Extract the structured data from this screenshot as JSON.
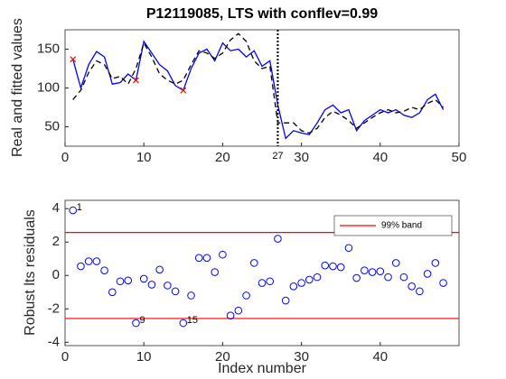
{
  "chart_data": [
    {
      "type": "line",
      "title": "P12119085, LTS with conflev=0.99",
      "y_label": "Real and fitted values",
      "x": [
        1,
        2,
        3,
        4,
        5,
        6,
        7,
        8,
        9,
        10,
        11,
        12,
        13,
        14,
        15,
        16,
        17,
        18,
        19,
        20,
        21,
        22,
        23,
        24,
        25,
        26,
        27,
        28,
        29,
        30,
        31,
        32,
        33,
        34,
        35,
        36,
        37,
        38,
        39,
        40,
        41,
        42,
        43,
        44,
        45,
        46,
        47,
        48
      ],
      "series": [
        {
          "color": "#0000ff",
          "style": "solid",
          "values": [
            137,
            100,
            130,
            147,
            140,
            105,
            107,
            118,
            110,
            160,
            145,
            130,
            122,
            103,
            97,
            125,
            145,
            150,
            135,
            158,
            148,
            150,
            140,
            148,
            128,
            135,
            78,
            35,
            45,
            42,
            40,
            55,
            72,
            78,
            68,
            72,
            45,
            58,
            65,
            72,
            68,
            72,
            65,
            62,
            68,
            85,
            92,
            72
          ]
        },
        {
          "color": "#000000",
          "style": "dashed",
          "values": [
            85,
            97,
            120,
            135,
            130,
            112,
            115,
            105,
            125,
            158,
            140,
            118,
            110,
            105,
            110,
            130,
            148,
            145,
            138,
            145,
            162,
            170,
            160,
            135,
            125,
            128,
            55,
            55,
            55,
            45,
            42,
            48,
            62,
            70,
            65,
            58,
            48,
            55,
            62,
            68,
            72,
            68,
            70,
            75,
            72,
            80,
            85,
            75
          ]
        }
      ],
      "outliers": {
        "color": "#ff0000",
        "x": [
          1,
          9,
          15
        ],
        "values": [
          137,
          110,
          97
        ]
      },
      "vline": 27,
      "xlim": [
        0,
        50
      ],
      "xticks": [
        0,
        10,
        20,
        30,
        40,
        50
      ],
      "ylim": [
        25,
        175
      ],
      "yticks": [
        50,
        100,
        150
      ]
    },
    {
      "type": "scatter",
      "x_label": "Index number",
      "y_label": "Robust lts residuals",
      "color": "#0000ff",
      "x": [
        1,
        2,
        3,
        4,
        5,
        6,
        7,
        8,
        9,
        10,
        11,
        12,
        13,
        14,
        15,
        16,
        17,
        18,
        19,
        20,
        21,
        22,
        23,
        24,
        25,
        26,
        27,
        28,
        29,
        30,
        31,
        32,
        33,
        34,
        35,
        36,
        37,
        38,
        39,
        40,
        41,
        42,
        43,
        44,
        45,
        46,
        47,
        48
      ],
      "values": [
        3.9,
        0.55,
        0.85,
        0.85,
        0.3,
        -1.0,
        -0.35,
        -0.3,
        -2.85,
        -0.2,
        -0.55,
        0.35,
        -0.6,
        -0.95,
        -2.85,
        -1.2,
        1.05,
        1.05,
        0.2,
        1.25,
        -2.4,
        -2.1,
        -1.2,
        0.75,
        -0.45,
        -0.35,
        2.2,
        -1.5,
        -0.65,
        -0.45,
        -0.25,
        -0.1,
        0.6,
        0.55,
        0.5,
        1.65,
        -0.15,
        0.3,
        0.2,
        0.25,
        -0.1,
        0.75,
        -0.1,
        -0.65,
        -0.95,
        0.1,
        0.75,
        -0.45
      ],
      "labeled_points": [
        1,
        9,
        15
      ],
      "band": {
        "name": "99% band",
        "color": "#ff0000",
        "values": [
          2.576,
          -2.576
        ]
      },
      "legend": "northeast",
      "xlim": [
        0,
        50
      ],
      "xticks": [
        0,
        10,
        20,
        30,
        40
      ],
      "ylim": [
        -4.2,
        4.5
      ],
      "yticks": [
        -4,
        -2,
        0,
        2,
        4
      ]
    }
  ]
}
